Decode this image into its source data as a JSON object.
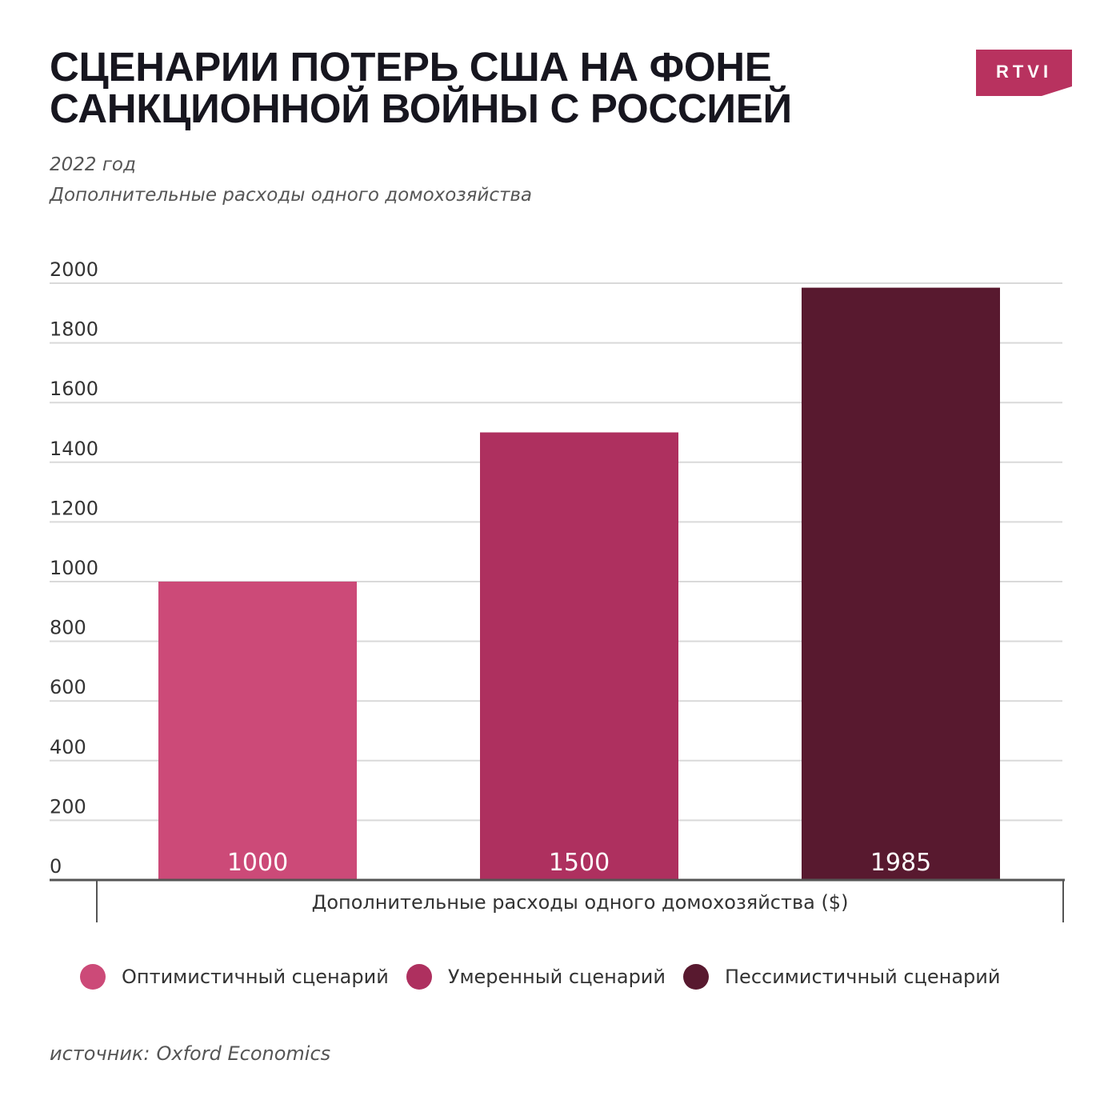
{
  "header": {
    "title_line1": "СЦЕНАРИИ ПОТЕРЬ США НА ФОНЕ",
    "title_line2": "САНКЦИОННОЙ ВОЙНЫ С РОССИЕЙ",
    "subtitle_year": "2022 год",
    "subtitle_measure": "Дополнительные расходы одного домохозяйства",
    "logo_text": "RTVI"
  },
  "footer": {
    "source_label": "источник:",
    "source_name": "Oxford Economics"
  },
  "colors": {
    "optimistic": "#cc4a78",
    "moderate": "#ae305f",
    "pessimistic": "#58192f",
    "logo": "#b8325f",
    "grid": "#d9d9d9",
    "axis": "#555555"
  },
  "chart_data": {
    "type": "bar",
    "title": "",
    "categories": [
      "Оптимистичный сценарий",
      "Умеренный сценарий",
      "Пессимистичный сценарий"
    ],
    "values": [
      1000,
      1500,
      1985
    ],
    "data_labels": [
      "1000",
      "1500",
      "1985"
    ],
    "xlabel": "Дополнительные расходы одного домохозяйства ($)",
    "ylabel": "",
    "ylim": [
      0,
      2000
    ],
    "yticks": [
      0,
      200,
      400,
      600,
      800,
      1000,
      1200,
      1400,
      1600,
      1800,
      2000
    ],
    "grid": true,
    "legend": {
      "position": "bottom",
      "entries": [
        {
          "label": "Оптимистичный сценарий",
          "color": "#cc4a78"
        },
        {
          "label": "Умеренный сценарий",
          "color": "#ae305f"
        },
        {
          "label": "Пессимистичный сценарий",
          "color": "#58192f"
        }
      ]
    }
  }
}
